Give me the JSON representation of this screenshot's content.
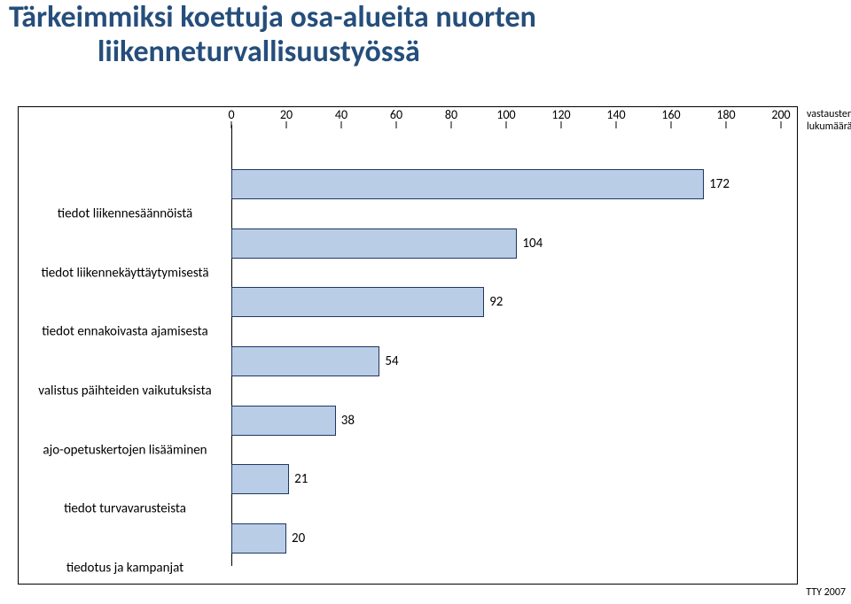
{
  "title": {
    "line1": "Tärkeimmiksi koettuja osa-alueita nuorten",
    "line2": "liikenneturvallisuustyössä",
    "color": "#254e7b",
    "fontsize": 34
  },
  "chart": {
    "type": "bar",
    "orientation": "horizontal",
    "xmin": 0,
    "xmax": 200,
    "xtick_step": 20,
    "xticks": [
      0,
      20,
      40,
      60,
      80,
      100,
      120,
      140,
      160,
      180,
      200
    ],
    "bar_color": "#b9cde6",
    "bar_border_color": "#1f3763",
    "background_color": "#ffffff",
    "tick_fontsize": 14,
    "label_fontsize": 15,
    "value_fontsize": 15,
    "categories": [
      {
        "label": "tiedot liikennesäännöistä",
        "value": 172
      },
      {
        "label": "tiedot liikennekäyttäytymisestä",
        "value": 104
      },
      {
        "label": "tiedot ennakoivasta ajamisesta",
        "value": 92
      },
      {
        "label": "valistus päihteiden vaikutuksista",
        "value": 54
      },
      {
        "label": "ajo-opetuskertojen lisääminen",
        "value": 38
      },
      {
        "label": "tiedot turvavarusteista",
        "value": 21
      },
      {
        "label": "tiedotus ja kampanjat",
        "value": 20
      }
    ]
  },
  "legend_label": {
    "line1": "vastausten",
    "line2": "lukumäärä"
  },
  "footer": "TTY 2007"
}
